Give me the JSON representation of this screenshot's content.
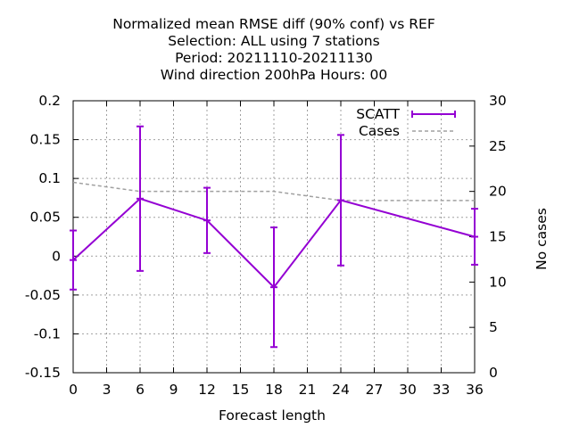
{
  "chart_data": {
    "type": "line",
    "title_lines": [
      "Normalized mean RMSE diff (90% conf) vs REF",
      "Selection: ALL using     7 stations",
      "Period: 20211110-20211130",
      "Wind direction 200hPa   Hours:  00"
    ],
    "xlabel": "Forecast length",
    "ylabel": "",
    "y2label": "No cases",
    "xlim": [
      0,
      36
    ],
    "ylim": [
      -0.15,
      0.2
    ],
    "y2lim": [
      0,
      30
    ],
    "x_ticks": [
      "0",
      "3",
      "6",
      "9",
      "12",
      "15",
      "18",
      "21",
      "24",
      "27",
      "30",
      "33",
      "36"
    ],
    "y_ticks": [
      "-0.15",
      "-0.1",
      "-0.05",
      "0",
      "0.05",
      "0.1",
      "0.15",
      "0.2"
    ],
    "y2_ticks": [
      "0",
      "5",
      "10",
      "15",
      "20",
      "25",
      "30"
    ],
    "grid": true,
    "legend_position": "top-right",
    "colors": {
      "scatt": "#9400d3",
      "cases": "#a0a0a0"
    },
    "series": [
      {
        "name": "SCATT",
        "axis": "left",
        "style": "line-errorbars",
        "x": [
          0,
          6,
          12,
          18,
          24,
          36
        ],
        "values": [
          -0.005,
          0.074,
          0.046,
          -0.04,
          0.072,
          0.025
        ],
        "lower": [
          -0.043,
          -0.019,
          0.004,
          -0.117,
          -0.012,
          -0.011
        ],
        "upper": [
          0.033,
          0.167,
          0.088,
          0.037,
          0.156,
          0.061
        ]
      },
      {
        "name": "Cases",
        "axis": "right",
        "style": "dashed",
        "x": [
          0,
          6,
          12,
          18,
          24,
          36
        ],
        "values": [
          21,
          20,
          20,
          20,
          19,
          19
        ]
      }
    ]
  }
}
